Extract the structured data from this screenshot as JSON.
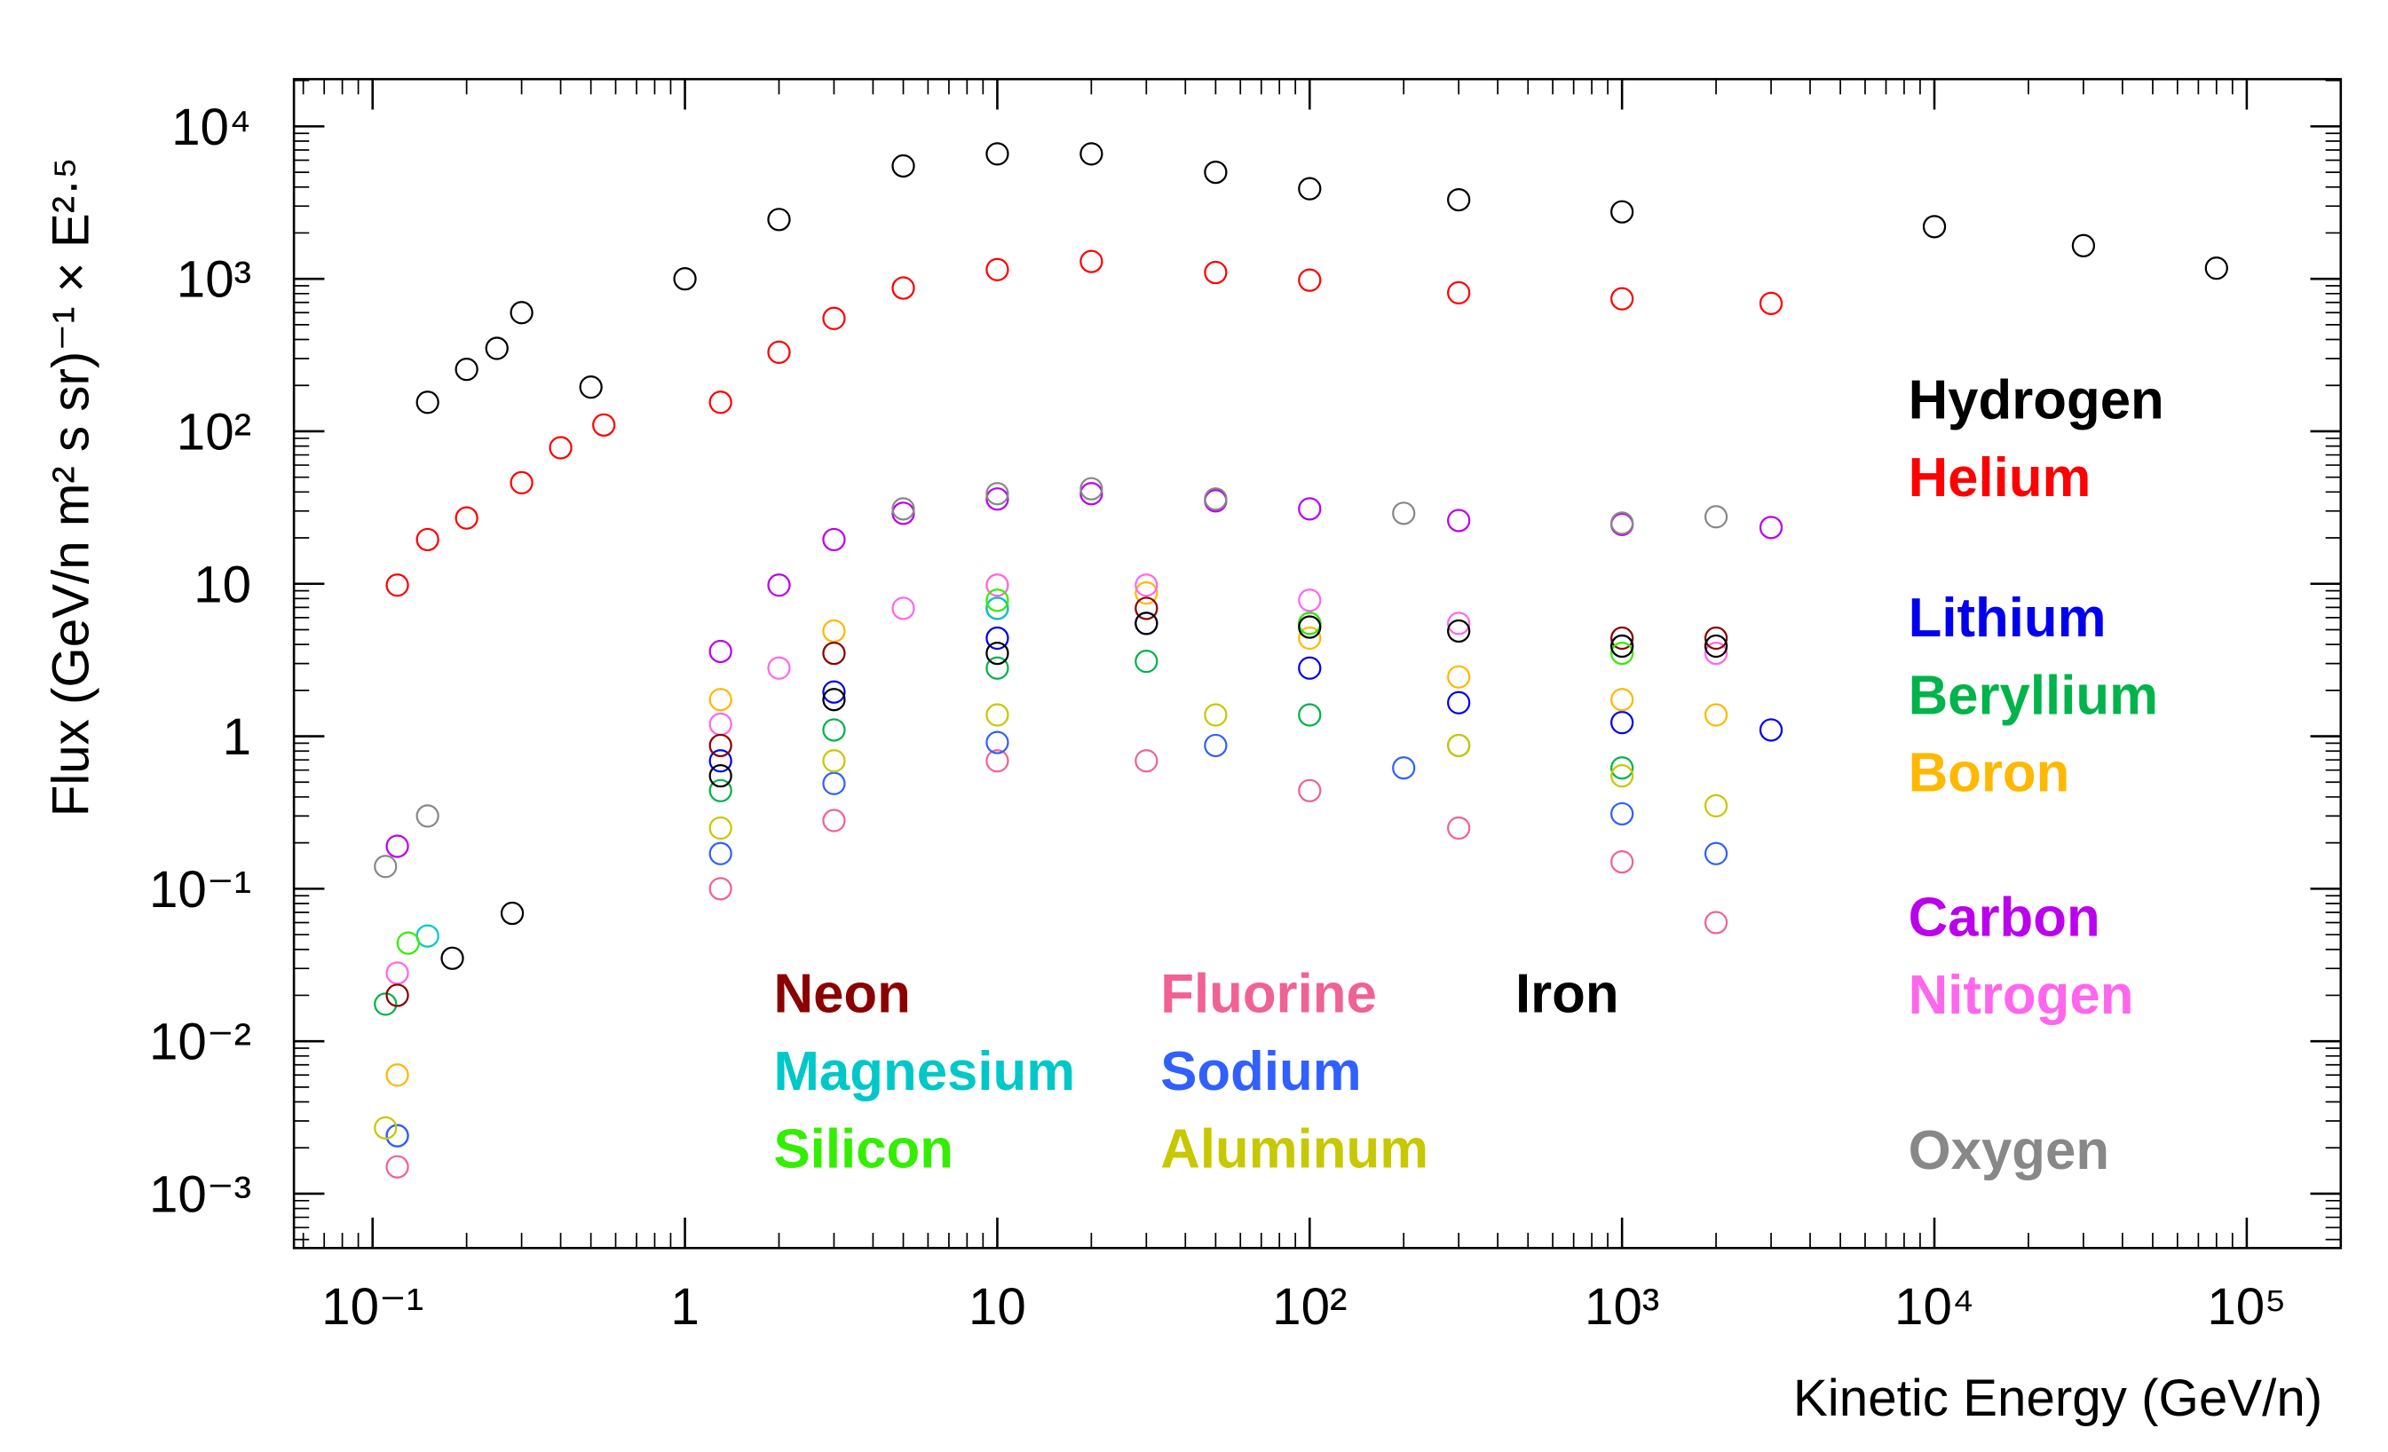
{
  "chart_data": {
    "type": "scatter",
    "x_label": "Kinetic Energy (GeV/n)",
    "y_label": "Flux (GeV/n m² s sr)⁻¹ × E²·⁵",
    "xscale": "log",
    "yscale": "log",
    "xlim": [
      0.056,
      200000
    ],
    "ylim": [
      0.00044,
      20400
    ],
    "xticks": [
      {
        "value": 0.1,
        "label": "10⁻¹"
      },
      1,
      10,
      {
        "value": 100,
        "label": "10²"
      },
      {
        "value": 1000,
        "label": "10³"
      },
      {
        "value": 10000,
        "label": "10⁴"
      },
      {
        "value": 100000,
        "label": "10⁵"
      }
    ],
    "yticks": [
      {
        "value": 0.001,
        "label": "10⁻³"
      },
      {
        "value": 0.01,
        "label": "10⁻²"
      },
      {
        "value": 0.1,
        "label": "10⁻¹"
      },
      1,
      10,
      {
        "value": 100,
        "label": "10²"
      },
      {
        "value": 1000,
        "label": "10³"
      },
      {
        "value": 10000,
        "label": "10⁴"
      }
    ],
    "series": [
      {
        "name": "Hydrogen",
        "color": "#000000",
        "x": [
          0.15,
          0.2,
          0.25,
          0.3,
          0.5,
          1,
          2,
          5,
          10,
          20,
          50,
          100,
          300,
          1000,
          10000,
          30000,
          80000
        ],
        "values": [
          155,
          255,
          350,
          600,
          195,
          1000,
          2450,
          5500,
          6600,
          6600,
          5000,
          3900,
          3300,
          2750,
          2200,
          1650,
          1175
        ]
      },
      {
        "name": "Helium",
        "color": "#ff0000",
        "x": [
          0.12,
          0.15,
          0.2,
          0.3,
          0.4,
          0.55,
          1.3,
          2,
          3,
          5,
          10,
          20,
          50,
          100,
          300,
          1000,
          3000
        ],
        "values": [
          9.8,
          19.5,
          27,
          46,
          78,
          110,
          155,
          330,
          550,
          870,
          1150,
          1300,
          1100,
          980,
          810,
          740,
          690
        ]
      },
      {
        "name": "Lithium",
        "color": "#0000ee",
        "x": [
          0.12,
          1.3,
          3,
          10,
          30,
          100,
          300,
          1000,
          3000
        ],
        "values": [
          0.0024,
          0.69,
          1.95,
          4.4,
          5.5,
          2.8,
          1.66,
          1.23,
          1.1
        ]
      },
      {
        "name": "Beryllium",
        "color": "#00b34a",
        "x": [
          0.11,
          1.3,
          3,
          10,
          30,
          100,
          300,
          1000
        ],
        "values": [
          0.0175,
          0.44,
          1.1,
          2.8,
          3.1,
          1.38,
          0.87,
          0.62
        ]
      },
      {
        "name": "Boron",
        "color": "#ffb800",
        "x": [
          0.12,
          1.3,
          3,
          10,
          30,
          100,
          300,
          1000,
          2000
        ],
        "values": [
          0.006,
          1.74,
          4.9,
          9.8,
          8.7,
          4.4,
          2.45,
          1.74,
          1.38
        ]
      },
      {
        "name": "Carbon",
        "color": "#bb00ee",
        "x": [
          0.12,
          1.3,
          2,
          3,
          5,
          10,
          20,
          50,
          100,
          300,
          1000,
          3000
        ],
        "values": [
          0.19,
          3.6,
          9.8,
          19.5,
          29,
          36,
          39,
          35,
          31,
          26,
          24.5,
          23.4
        ]
      },
      {
        "name": "Nitrogen",
        "color": "#ff66ee",
        "x": [
          0.12,
          1.3,
          2,
          5,
          10,
          30,
          100,
          300,
          1000,
          2000
        ],
        "values": [
          0.028,
          1.2,
          2.8,
          6.9,
          9.8,
          9.8,
          7.8,
          5.5,
          3.9,
          3.5
        ]
      },
      {
        "name": "Oxygen",
        "color": "#888888",
        "x": [
          0.11,
          0.15,
          5,
          10,
          20,
          50,
          200,
          1000,
          2000
        ],
        "values": [
          0.14,
          0.3,
          31,
          39,
          42,
          36,
          29,
          25,
          27.5
        ]
      },
      {
        "name": "Neon",
        "color": "#8b0000",
        "x": [
          0.12,
          1.3,
          3,
          10,
          30,
          100,
          1000,
          2000
        ],
        "values": [
          0.02,
          0.87,
          3.5,
          6.9,
          6.9,
          5.5,
          4.4,
          4.4
        ]
      },
      {
        "name": "Magnesium",
        "color": "#00c8c8",
        "x": [
          0.15,
          10,
          100,
          1000
        ],
        "values": [
          0.049,
          6.9,
          5.5,
          3.9
        ]
      },
      {
        "name": "Silicon",
        "color": "#33ee00",
        "x": [
          0.13,
          10,
          100,
          1000
        ],
        "values": [
          0.044,
          7.8,
          5.5,
          3.5
        ]
      },
      {
        "name": "Fluorine",
        "color": "#f06292",
        "x": [
          0.12,
          1.3,
          3,
          10,
          30,
          100,
          300,
          1000,
          2000
        ],
        "values": [
          0.0015,
          0.1,
          0.28,
          0.69,
          0.69,
          0.44,
          0.25,
          0.15,
          0.06
        ]
      },
      {
        "name": "Sodium",
        "color": "#3060ff",
        "x": [
          0.12,
          1.3,
          3,
          10,
          50,
          200,
          1000,
          2000
        ],
        "values": [
          0.0024,
          0.17,
          0.49,
          0.91,
          0.87,
          0.62,
          0.31,
          0.17
        ]
      },
      {
        "name": "Aluminum",
        "color": "#c8c800",
        "x": [
          0.11,
          1.3,
          3,
          10,
          50,
          300,
          1000,
          2000
        ],
        "values": [
          0.0027,
          0.25,
          0.69,
          1.38,
          1.38,
          0.87,
          0.55,
          0.35
        ]
      },
      {
        "name": "Iron",
        "color": "#000000",
        "x": [
          0.18,
          0.28,
          1.3,
          3,
          10,
          30,
          100,
          300,
          1000,
          2000
        ],
        "values": [
          0.035,
          0.069,
          0.55,
          1.74,
          3.5,
          5.5,
          5.2,
          4.9,
          3.9,
          3.9
        ]
      }
    ]
  }
}
